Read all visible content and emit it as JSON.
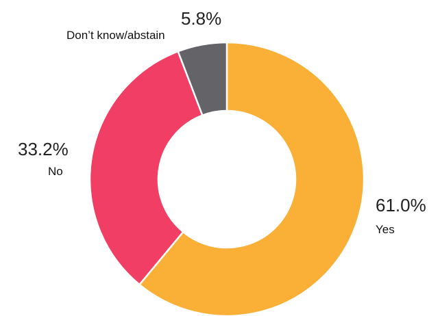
{
  "chart_data": {
    "type": "pie",
    "subtype": "donut",
    "start_angle_deg": 0,
    "direction": "clockwise",
    "slices": [
      {
        "label": "Yes",
        "value": 61.0,
        "display": "61.0%",
        "color": "#fab036"
      },
      {
        "label": "No",
        "value": 33.2,
        "display": "33.2%",
        "color": "#f03e64"
      },
      {
        "label": "Don’t know/abstain",
        "value": 5.8,
        "display": "5.8%",
        "color": "#646468"
      }
    ],
    "separator_color": "#ffffff"
  }
}
